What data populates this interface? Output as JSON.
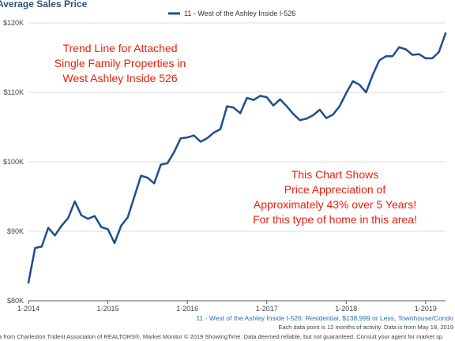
{
  "chart_data": {
    "type": "line",
    "title": "Average Sales Price",
    "legend": "11 - West of the Ashley Inside I-526",
    "legend_position": "top-right",
    "series": [
      {
        "name": "11 - West of the Ashley Inside I-526",
        "color": "#1f4e8c",
        "x": [
          "2014-01",
          "2014-02",
          "2014-03",
          "2014-04",
          "2014-05",
          "2014-06",
          "2014-07",
          "2014-08",
          "2014-09",
          "2014-10",
          "2014-11",
          "2014-12",
          "2015-01",
          "2015-02",
          "2015-03",
          "2015-04",
          "2015-05",
          "2015-06",
          "2015-07",
          "2015-08",
          "2015-09",
          "2015-10",
          "2015-11",
          "2015-12",
          "2016-01",
          "2016-02",
          "2016-03",
          "2016-04",
          "2016-05",
          "2016-06",
          "2016-07",
          "2016-08",
          "2016-09",
          "2016-10",
          "2016-11",
          "2016-12",
          "2017-01",
          "2017-02",
          "2017-03",
          "2017-04",
          "2017-05",
          "2017-06",
          "2017-07",
          "2017-08",
          "2017-09",
          "2017-10",
          "2017-11",
          "2017-12",
          "2018-01",
          "2018-02",
          "2018-03",
          "2018-04",
          "2018-05",
          "2018-06",
          "2018-07",
          "2018-08",
          "2018-09",
          "2018-10",
          "2018-11",
          "2018-12",
          "2019-01",
          "2019-02",
          "2019-03",
          "2019-04"
        ],
        "values": [
          82600,
          87600,
          87800,
          90500,
          89400,
          90800,
          91900,
          94300,
          92300,
          91800,
          92200,
          90600,
          90300,
          88300,
          90800,
          92000,
          95000,
          98000,
          97700,
          96900,
          99600,
          99800,
          101400,
          103400,
          103500,
          103800,
          102900,
          103400,
          104200,
          104700,
          108000,
          107800,
          107000,
          109200,
          108900,
          109500,
          109300,
          108100,
          109000,
          108000,
          106900,
          106000,
          106200,
          106700,
          107500,
          106300,
          106800,
          108000,
          109900,
          111600,
          111100,
          110000,
          112500,
          114600,
          115200,
          115200,
          116500,
          116200,
          115400,
          115500,
          114900,
          114900,
          115800,
          118500
        ]
      }
    ],
    "y_ticks": [
      "$80K",
      "$90K",
      "$100K",
      "$110K",
      "$120K"
    ],
    "y_tick_values": [
      80000,
      90000,
      100000,
      110000,
      120000
    ],
    "x_ticks": [
      "1-2014",
      "1-2015",
      "1-2016",
      "1-2017",
      "1-2018",
      "1-2019"
    ],
    "x_tick_dates": [
      "2014-01",
      "2015-01",
      "2016-01",
      "2017-01",
      "2018-01",
      "2019-01"
    ],
    "xlim": [
      "2014-01",
      "2019-04"
    ],
    "ylim": [
      80000,
      120000
    ],
    "grid": "horizontal",
    "annotations": [
      {
        "lines": [
          "Trend Line for Attached",
          "Single Family Properties in",
          "West Ashley Inside 526"
        ],
        "color": "#e8200c"
      },
      {
        "lines": [
          "This Chart Shows",
          "Price Appreciation of",
          "Approximately 43% over 5 Years!",
          "For this type of home in this area!"
        ],
        "color": "#e8200c"
      }
    ],
    "caption": "11 - West of the Ashley Inside I-526: Residential, $138,999 or Less, Townhouse/Condo",
    "note": "Each data point is 12 months of activity. Data is from May 18, 2019",
    "footer": "a from Charleston Trident Associaton of REALTORS®. Market Monitor © 2019 ShowingTime. Data deemed reliable, but not guaranteed. Consult your agent for market sp"
  }
}
